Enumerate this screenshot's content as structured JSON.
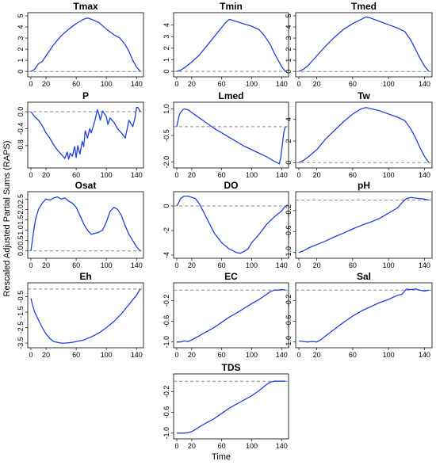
{
  "figure": {
    "ylabel": "Rescaled Adjusted Partial Sums (RAPS)",
    "xlabel": "Time",
    "line_color": "#1f3fe0",
    "reference_color": "#8a8a8a"
  },
  "chart_data": [
    {
      "type": "line",
      "title": "Tmax",
      "xlim": [
        0,
        145
      ],
      "ylim": [
        -0.2,
        5.0
      ],
      "xticks": [
        0,
        20,
        60,
        100,
        140
      ],
      "yticks": [
        0,
        1,
        2,
        3,
        4,
        5
      ],
      "ytick_labels": [
        "0",
        "1",
        "2",
        "3",
        "4",
        "5"
      ],
      "reference": 0,
      "series": [
        {
          "x": [
            0,
            5,
            10,
            15,
            20,
            30,
            40,
            50,
            60,
            65,
            70,
            75,
            80,
            90,
            100,
            110,
            118,
            125,
            130,
            135,
            140,
            145
          ],
          "y": [
            0,
            0.2,
            0.7,
            0.9,
            1.4,
            2.4,
            3.2,
            3.8,
            4.3,
            4.5,
            4.7,
            4.8,
            4.7,
            4.4,
            3.8,
            3.3,
            3.0,
            2.4,
            1.8,
            1.0,
            0.4,
            0.0
          ]
        }
      ]
    },
    {
      "type": "line",
      "title": "Tmin",
      "xlim": [
        0,
        145
      ],
      "ylim": [
        -0.2,
        4.8
      ],
      "xticks": [
        0,
        20,
        60,
        100,
        140
      ],
      "yticks": [
        0,
        1,
        2,
        3,
        4
      ],
      "ytick_labels": [
        "0",
        "1",
        "2",
        "3",
        "4"
      ],
      "reference": 0,
      "series": [
        {
          "x": [
            0,
            5,
            10,
            20,
            30,
            40,
            50,
            60,
            65,
            70,
            75,
            80,
            90,
            100,
            110,
            118,
            125,
            130,
            135,
            140,
            145
          ],
          "y": [
            0,
            0.1,
            0.3,
            0.8,
            1.4,
            2.2,
            3.0,
            3.8,
            4.2,
            4.5,
            4.4,
            4.3,
            4.1,
            3.9,
            3.6,
            3.0,
            2.3,
            1.6,
            1.0,
            0.4,
            0.0
          ]
        }
      ]
    },
    {
      "type": "line",
      "title": "Tmed",
      "xlim": [
        0,
        145
      ],
      "ylim": [
        -0.2,
        5.0
      ],
      "xticks": [
        0,
        20,
        60,
        100,
        140
      ],
      "yticks": [
        0,
        1,
        2,
        3,
        4,
        5
      ],
      "ytick_labels": [
        "0",
        "1",
        "2",
        "3",
        "4",
        "5"
      ],
      "reference": 0,
      "series": [
        {
          "x": [
            0,
            5,
            10,
            20,
            30,
            40,
            50,
            60,
            70,
            75,
            80,
            90,
            100,
            110,
            118,
            125,
            130,
            135,
            140,
            145
          ],
          "y": [
            0,
            0.2,
            0.5,
            1.4,
            2.3,
            3.1,
            3.8,
            4.3,
            4.7,
            4.9,
            4.8,
            4.5,
            4.2,
            3.9,
            3.6,
            2.8,
            2.0,
            1.2,
            0.5,
            0.0
          ]
        }
      ]
    },
    {
      "type": "line",
      "title": "P",
      "xlim": [
        0,
        145
      ],
      "ylim": [
        -1.25,
        0.15
      ],
      "xticks": [
        0,
        20,
        60,
        100,
        140
      ],
      "yticks": [
        0,
        -0.4,
        -0.8
      ],
      "ytick_labels": [
        "0.0",
        "-0.4",
        "-0.8"
      ],
      "reference": 0,
      "series": [
        {
          "x": [
            0,
            5,
            10,
            15,
            20,
            25,
            30,
            35,
            40,
            45,
            48,
            50,
            52,
            55,
            58,
            60,
            62,
            65,
            68,
            70,
            72,
            75,
            78,
            80,
            85,
            88,
            90,
            92,
            95,
            100,
            102,
            105,
            110,
            115,
            120,
            125,
            130,
            135,
            138,
            140,
            142,
            145
          ],
          "y": [
            0,
            -0.12,
            -0.2,
            -0.33,
            -0.5,
            -0.62,
            -0.78,
            -0.9,
            -1.0,
            -1.1,
            -0.95,
            -1.12,
            -0.98,
            -1.05,
            -0.82,
            -1.08,
            -0.8,
            -1.0,
            -0.7,
            -0.82,
            -0.45,
            -0.62,
            -0.4,
            -0.5,
            -0.2,
            0.05,
            -0.05,
            -0.2,
            0.02,
            -0.12,
            -0.3,
            -0.15,
            -0.25,
            -0.4,
            -0.5,
            -0.62,
            -0.2,
            -0.35,
            -0.15,
            0.1,
            0.1,
            0.0
          ]
        }
      ]
    },
    {
      "type": "line",
      "title": "Lmed",
      "xlim": [
        0,
        145
      ],
      "ylim": [
        -2.15,
        1.2
      ],
      "xticks": [
        0,
        20,
        60,
        100,
        140
      ],
      "yticks": [
        1.0,
        -0.5,
        -2.0
      ],
      "ytick_labels": [
        "1.0",
        "-0.5",
        "-2.0"
      ],
      "reference": 0,
      "series": [
        {
          "x": [
            0,
            3,
            5,
            8,
            10,
            15,
            20,
            30,
            40,
            50,
            60,
            70,
            80,
            90,
            100,
            110,
            120,
            130,
            135,
            137,
            139,
            141,
            143,
            145
          ],
          "y": [
            0,
            0.6,
            0.8,
            0.95,
            1.0,
            0.95,
            0.8,
            0.5,
            0.2,
            -0.1,
            -0.35,
            -0.6,
            -0.85,
            -1.1,
            -1.3,
            -1.5,
            -1.7,
            -1.95,
            -2.05,
            -2.1,
            -1.7,
            -1.0,
            -0.3,
            0.0
          ]
        }
      ]
    },
    {
      "type": "line",
      "title": "Tw",
      "xlim": [
        0,
        145
      ],
      "ylim": [
        -0.2,
        5.3
      ],
      "xticks": [
        0,
        20,
        60,
        100,
        140
      ],
      "yticks": [
        0,
        2,
        4
      ],
      "ytick_labels": [
        "0",
        "2",
        "4"
      ],
      "reference": 0,
      "series": [
        {
          "x": [
            0,
            5,
            10,
            20,
            30,
            40,
            50,
            60,
            70,
            75,
            80,
            90,
            100,
            110,
            118,
            125,
            130,
            135,
            140,
            145
          ],
          "y": [
            0,
            0.2,
            0.5,
            1.2,
            2.2,
            3.0,
            3.8,
            4.5,
            5.0,
            5.1,
            5.0,
            4.8,
            4.5,
            4.2,
            3.9,
            3.1,
            2.3,
            1.4,
            0.6,
            0.0
          ]
        }
      ]
    },
    {
      "type": "line",
      "title": "Osat",
      "xlim": [
        0,
        145
      ],
      "ylim": [
        -0.2,
        2.7
      ],
      "xticks": [
        0,
        20,
        60,
        100,
        140
      ],
      "yticks": [
        0,
        0.5,
        1.0,
        1.5,
        2.0,
        2.5
      ],
      "ytick_labels": [
        "0.0",
        "0.5",
        "1.0",
        "1.5",
        "2.0",
        "2.5"
      ],
      "reference": 0,
      "series": [
        {
          "x": [
            0,
            3,
            6,
            10,
            15,
            20,
            25,
            30,
            35,
            40,
            45,
            50,
            55,
            60,
            65,
            70,
            75,
            80,
            85,
            90,
            95,
            100,
            105,
            110,
            115,
            120,
            125,
            130,
            135,
            140,
            145
          ],
          "y": [
            0,
            0.8,
            1.5,
            2.0,
            2.3,
            2.5,
            2.45,
            2.55,
            2.6,
            2.5,
            2.55,
            2.4,
            2.3,
            2.1,
            1.7,
            1.3,
            1.0,
            0.8,
            0.85,
            0.9,
            1.0,
            1.4,
            1.9,
            2.1,
            2.0,
            1.7,
            1.2,
            0.8,
            0.5,
            0.2,
            0.0
          ]
        }
      ]
    },
    {
      "type": "line",
      "title": "DO",
      "xlim": [
        0,
        145
      ],
      "ylim": [
        -4.0,
        0.9
      ],
      "xticks": [
        0,
        20,
        60,
        100,
        140
      ],
      "yticks": [
        0,
        -2,
        -4
      ],
      "ytick_labels": [
        "0",
        "-2",
        "-4"
      ],
      "reference": 0,
      "series": [
        {
          "x": [
            0,
            3,
            5,
            10,
            15,
            20,
            25,
            30,
            40,
            50,
            60,
            70,
            80,
            85,
            90,
            95,
            100,
            110,
            120,
            130,
            140,
            145
          ],
          "y": [
            0,
            0.3,
            0.6,
            0.8,
            0.8,
            0.7,
            0.6,
            0.2,
            -1.0,
            -2.2,
            -3.0,
            -3.5,
            -3.8,
            -3.85,
            -3.7,
            -3.5,
            -3.0,
            -2.3,
            -1.5,
            -0.9,
            -0.4,
            0.0
          ]
        }
      ]
    },
    {
      "type": "line",
      "title": "pH",
      "xlim": [
        0,
        145
      ],
      "ylim": [
        -1.05,
        0.1
      ],
      "xticks": [
        0,
        20,
        60,
        100,
        140
      ],
      "yticks": [
        -0.2,
        -0.6,
        -1.0
      ],
      "ytick_labels": [
        "-0.2",
        "-0.6",
        "-1.0"
      ],
      "reference": 0,
      "series": [
        {
          "x": [
            0,
            5,
            10,
            20,
            30,
            40,
            50,
            60,
            70,
            80,
            90,
            100,
            110,
            115,
            120,
            125,
            130,
            135,
            140,
            145
          ],
          "y": [
            -1.0,
            -0.97,
            -0.92,
            -0.85,
            -0.78,
            -0.7,
            -0.63,
            -0.55,
            -0.48,
            -0.42,
            -0.35,
            -0.25,
            -0.15,
            -0.05,
            0.03,
            0.05,
            0.04,
            0.03,
            0.02,
            0.0
          ]
        }
      ]
    },
    {
      "type": "line",
      "title": "Eh",
      "xlim": [
        0,
        145
      ],
      "ylim": [
        -3.6,
        0.2
      ],
      "xticks": [
        0,
        20,
        60,
        100,
        140
      ],
      "yticks": [
        -0.5,
        -1.5,
        -2.5,
        -3.5
      ],
      "ytick_labels": [
        "-0.5",
        "-1.5",
        "-2.5",
        "-3.5"
      ],
      "reference": 0,
      "series": [
        {
          "x": [
            0,
            2,
            5,
            10,
            15,
            20,
            25,
            30,
            35,
            40,
            45,
            50,
            55,
            60,
            70,
            80,
            90,
            100,
            110,
            120,
            130,
            140,
            145
          ],
          "y": [
            -0.6,
            -1.0,
            -1.5,
            -2.0,
            -2.5,
            -2.9,
            -3.2,
            -3.4,
            -3.45,
            -3.5,
            -3.5,
            -3.48,
            -3.45,
            -3.4,
            -3.3,
            -3.1,
            -2.85,
            -2.5,
            -2.1,
            -1.6,
            -1.0,
            -0.4,
            0.0
          ]
        }
      ]
    },
    {
      "type": "line",
      "title": "EC",
      "xlim": [
        0,
        145
      ],
      "ylim": [
        -1.05,
        0.08
      ],
      "xticks": [
        0,
        20,
        60,
        100,
        140
      ],
      "yticks": [
        -0.2,
        -0.6,
        -1.0
      ],
      "ytick_labels": [
        "-0.2",
        "-0.6",
        "-1.0"
      ],
      "reference": 0,
      "series": [
        {
          "x": [
            0,
            5,
            10,
            15,
            20,
            25,
            30,
            40,
            50,
            60,
            70,
            80,
            90,
            100,
            110,
            120,
            125,
            130,
            135,
            140,
            145
          ],
          "y": [
            -1.0,
            -1.0,
            -0.98,
            -0.99,
            -0.96,
            -0.92,
            -0.88,
            -0.8,
            -0.72,
            -0.62,
            -0.52,
            -0.44,
            -0.35,
            -0.26,
            -0.18,
            -0.08,
            -0.03,
            0.0,
            0.0,
            0.01,
            0.0
          ]
        }
      ]
    },
    {
      "type": "line",
      "title": "Sal",
      "xlim": [
        0,
        145
      ],
      "ylim": [
        -1.05,
        0.08
      ],
      "xticks": [
        0,
        20,
        60,
        100,
        140
      ],
      "yticks": [
        -0.2,
        -0.6,
        -1.0
      ],
      "ytick_labels": [
        "-0.2",
        "-0.6",
        "-1.0"
      ],
      "reference": 0,
      "series": [
        {
          "x": [
            0,
            5,
            10,
            15,
            20,
            25,
            30,
            40,
            50,
            60,
            70,
            80,
            90,
            100,
            110,
            115,
            118,
            120,
            125,
            130,
            135,
            140,
            145
          ],
          "y": [
            -0.98,
            -0.99,
            -1.0,
            -0.99,
            -1.0,
            -0.95,
            -0.88,
            -0.75,
            -0.62,
            -0.5,
            -0.4,
            -0.32,
            -0.24,
            -0.18,
            -0.1,
            -0.08,
            -0.02,
            0.02,
            0.01,
            0.02,
            0.0,
            -0.02,
            0.0
          ]
        }
      ]
    },
    {
      "type": "line",
      "title": "TDS",
      "xlim": [
        0,
        145
      ],
      "ylim": [
        -1.05,
        0.08
      ],
      "xticks": [
        0,
        20,
        60,
        100,
        140
      ],
      "yticks": [
        -0.2,
        -0.6,
        -1.0
      ],
      "ytick_labels": [
        "-0.2",
        "-0.6",
        "-1.0"
      ],
      "reference": 0,
      "series": [
        {
          "x": [
            0,
            5,
            10,
            15,
            20,
            25,
            30,
            40,
            50,
            60,
            70,
            80,
            90,
            100,
            110,
            115,
            120,
            125,
            130,
            135,
            140,
            145
          ],
          "y": [
            -1.0,
            -1.0,
            -1.0,
            -0.99,
            -0.97,
            -0.93,
            -0.88,
            -0.8,
            -0.72,
            -0.62,
            -0.52,
            -0.44,
            -0.36,
            -0.28,
            -0.18,
            -0.12,
            -0.06,
            -0.02,
            0.0,
            0.0,
            0.0,
            0.0
          ]
        }
      ]
    }
  ]
}
